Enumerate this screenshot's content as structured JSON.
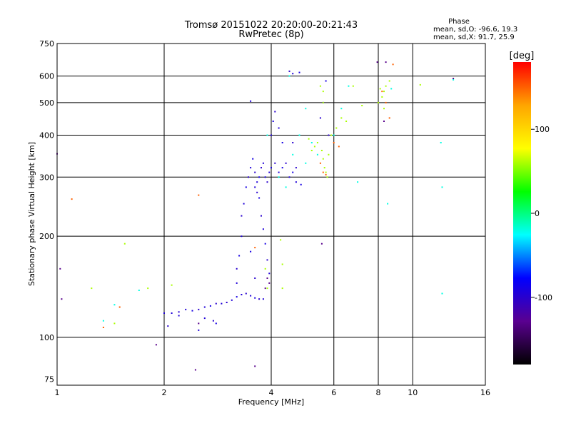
{
  "chart_data": {
    "type": "scatter",
    "title": "Tromsø 20151022 20:20:00-20:21:43",
    "subtitle": "RwPretec (8p)",
    "xlabel": "Frequency [MHz]",
    "ylabel": "Stationary phase Virtual Height [km]",
    "xscale": "log",
    "yscale": "log",
    "xlim": [
      1,
      16
    ],
    "ylim": [
      72,
      750
    ],
    "xticks": [
      "1",
      "2",
      "4",
      "6",
      "8",
      "10",
      "16"
    ],
    "xtick_values": [
      1,
      2,
      4,
      6,
      8,
      10,
      16
    ],
    "yticks": [
      "75",
      "100",
      "200",
      "300",
      "400",
      "500",
      "600",
      "750"
    ],
    "ytick_values": [
      75,
      100,
      200,
      300,
      400,
      500,
      600,
      750
    ],
    "grid": true,
    "stats": {
      "heading": "Phase",
      "line_o": "mean, sd,O: -96.6, 19.3",
      "line_x": "mean, sd,X:  91.7, 25.9"
    },
    "colorbar": {
      "label": "[deg]",
      "range": [
        -180,
        180
      ],
      "ticks": [
        "100",
        "0",
        "-100"
      ],
      "tick_values": [
        100,
        0,
        -100
      ],
      "colors": [
        "#000000",
        "#5a0090",
        "#0000ff",
        "#00ffff",
        "#00ff00",
        "#ffff00",
        "#ffa500",
        "#ff0000"
      ]
    },
    "series": [
      {
        "points": [
          [
            2.0,
            118,
            -95
          ],
          [
            2.1,
            118,
            -95
          ],
          [
            2.2,
            119,
            -100
          ],
          [
            2.3,
            121,
            -95
          ],
          [
            2.4,
            120,
            -90
          ],
          [
            2.5,
            121,
            -100
          ],
          [
            2.6,
            123,
            -95
          ],
          [
            2.7,
            124,
            -90
          ],
          [
            2.8,
            126,
            -100
          ],
          [
            2.9,
            126,
            -95
          ],
          [
            3.0,
            127,
            -100
          ],
          [
            3.1,
            129,
            -95
          ],
          [
            3.2,
            132,
            -90
          ],
          [
            3.3,
            134,
            -95
          ],
          [
            3.4,
            135,
            -100
          ],
          [
            3.5,
            133,
            -95
          ],
          [
            3.6,
            131,
            -90
          ],
          [
            3.7,
            130,
            -100
          ],
          [
            3.8,
            130,
            -95
          ],
          [
            3.2,
            145,
            -95
          ],
          [
            3.2,
            160,
            -100
          ],
          [
            3.25,
            175,
            -90
          ],
          [
            3.3,
            200,
            -95
          ],
          [
            3.3,
            230,
            -100
          ],
          [
            3.35,
            250,
            -95
          ],
          [
            3.4,
            280,
            -90
          ],
          [
            3.45,
            300,
            -100
          ],
          [
            3.5,
            320,
            -95
          ],
          [
            3.55,
            340,
            -90
          ],
          [
            3.6,
            310,
            -100
          ],
          [
            3.65,
            290,
            -95
          ],
          [
            3.7,
            300,
            -90
          ],
          [
            3.75,
            320,
            -100
          ],
          [
            3.8,
            330,
            -95
          ],
          [
            3.85,
            300,
            -90
          ],
          [
            3.9,
            290,
            -100
          ],
          [
            3.95,
            310,
            -95
          ],
          [
            4.0,
            320,
            -90
          ],
          [
            4.1,
            330,
            -100
          ],
          [
            4.2,
            310,
            -95
          ],
          [
            4.3,
            320,
            -90
          ],
          [
            4.4,
            330,
            -100
          ],
          [
            4.5,
            300,
            -95
          ],
          [
            4.6,
            310,
            -90
          ],
          [
            4.7,
            320,
            -100
          ],
          [
            4.0,
            400,
            -95
          ],
          [
            4.05,
            440,
            -90
          ],
          [
            4.1,
            470,
            -100
          ],
          [
            4.2,
            420,
            -95
          ],
          [
            4.3,
            380,
            -90
          ],
          [
            4.5,
            620,
            -100
          ],
          [
            4.6,
            610,
            -95
          ],
          [
            4.8,
            615,
            -90
          ],
          [
            3.5,
            505,
            -95
          ],
          [
            5.5,
            450,
            -100
          ],
          [
            5.6,
            500,
            -95
          ],
          [
            5.7,
            580,
            -90
          ],
          [
            5.8,
            400,
            -100
          ],
          [
            3.6,
            280,
            -95
          ],
          [
            3.65,
            270,
            -100
          ],
          [
            3.7,
            260,
            -90
          ],
          [
            3.75,
            230,
            -100
          ],
          [
            3.8,
            210,
            -95
          ],
          [
            3.85,
            190,
            -90
          ],
          [
            3.9,
            170,
            -100
          ],
          [
            3.95,
            155,
            -95
          ],
          [
            3.5,
            180,
            -90
          ],
          [
            3.6,
            150,
            -100
          ],
          [
            2.6,
            114,
            -95
          ],
          [
            2.75,
            112,
            -100
          ],
          [
            2.8,
            110,
            -90
          ],
          [
            2.2,
            116,
            -95
          ],
          [
            2.05,
            108,
            -100
          ],
          [
            2.5,
            105,
            -95
          ],
          [
            4.6,
            380,
            -100
          ],
          [
            4.7,
            290,
            -95
          ],
          [
            4.85,
            285,
            -90
          ],
          [
            4.2,
            300,
            -20
          ],
          [
            4.4,
            280,
            -20
          ],
          [
            4.6,
            350,
            -20
          ],
          [
            4.8,
            400,
            -20
          ],
          [
            5.0,
            330,
            -20
          ],
          [
            5.2,
            380,
            -20
          ],
          [
            5.4,
            350,
            -20
          ],
          [
            3.9,
            400,
            -20
          ],
          [
            5.0,
            480,
            -20
          ],
          [
            6.0,
            400,
            -20
          ],
          [
            6.3,
            480,
            -20
          ],
          [
            6.6,
            560,
            -20
          ],
          [
            7.0,
            290,
            -20
          ],
          [
            8.7,
            550,
            -20
          ],
          [
            13.0,
            585,
            -20
          ],
          [
            12.0,
            380,
            -20
          ],
          [
            12.1,
            280,
            -20
          ],
          [
            12.1,
            135,
            -20
          ],
          [
            8.5,
            250,
            -20
          ],
          [
            1.7,
            138,
            -20
          ],
          [
            1.45,
            125,
            -20
          ],
          [
            1.35,
            112,
            -20
          ],
          [
            4.5,
            600,
            -20
          ],
          [
            5.6,
            340,
            60
          ],
          [
            5.65,
            320,
            60
          ],
          [
            5.7,
            310,
            60
          ],
          [
            5.75,
            300,
            60
          ],
          [
            5.55,
            360,
            60
          ],
          [
            5.4,
            380,
            60
          ],
          [
            5.3,
            370,
            60
          ],
          [
            5.2,
            360,
            60
          ],
          [
            5.1,
            390,
            60
          ],
          [
            5.8,
            350,
            60
          ],
          [
            5.9,
            400,
            60
          ],
          [
            6.1,
            420,
            60
          ],
          [
            6.3,
            450,
            60
          ],
          [
            6.5,
            440,
            60
          ],
          [
            7.2,
            490,
            60
          ],
          [
            8.0,
            500,
            60
          ],
          [
            8.2,
            520,
            60
          ],
          [
            8.3,
            540,
            60
          ],
          [
            8.4,
            560,
            60
          ],
          [
            8.6,
            580,
            60
          ],
          [
            8.1,
            550,
            60
          ],
          [
            8.3,
            480,
            60
          ],
          [
            10.5,
            565,
            60
          ],
          [
            5.5,
            560,
            60
          ],
          [
            5.6,
            540,
            60
          ],
          [
            1.55,
            190,
            60
          ],
          [
            1.8,
            140,
            60
          ],
          [
            2.1,
            143,
            60
          ],
          [
            4.3,
            140,
            60
          ],
          [
            4.3,
            165,
            60
          ],
          [
            1.25,
            140,
            60
          ],
          [
            1.45,
            110,
            60
          ],
          [
            4.25,
            195,
            60
          ],
          [
            3.85,
            160,
            60
          ],
          [
            3.9,
            140,
            60
          ],
          [
            6.8,
            560,
            60
          ],
          [
            5.6,
            500,
            60
          ],
          [
            5.6,
            310,
            150
          ],
          [
            5.7,
            305,
            150
          ],
          [
            5.5,
            330,
            150
          ],
          [
            6.0,
            380,
            150
          ],
          [
            6.2,
            370,
            150
          ],
          [
            8.2,
            540,
            150
          ],
          [
            8.4,
            500,
            150
          ],
          [
            8.6,
            450,
            150
          ],
          [
            8.8,
            650,
            150
          ],
          [
            1.1,
            258,
            150
          ],
          [
            1.35,
            107,
            150
          ],
          [
            1.5,
            123,
            150
          ],
          [
            2.5,
            265,
            150
          ],
          [
            3.6,
            185,
            150
          ],
          [
            1.0,
            352,
            -130
          ],
          [
            1.02,
            160,
            -130
          ],
          [
            1.03,
            130,
            -130
          ],
          [
            2.5,
            110,
            -130
          ],
          [
            2.45,
            80,
            -130
          ],
          [
            3.6,
            82,
            -130
          ],
          [
            1.9,
            95,
            -130
          ],
          [
            7.95,
            660,
            -130
          ],
          [
            8.4,
            660,
            -130
          ],
          [
            8.3,
            440,
            -130
          ],
          [
            5.55,
            190,
            -130
          ],
          [
            13.0,
            590,
            -130
          ],
          [
            3.85,
            140,
            -130
          ],
          [
            3.9,
            150,
            -130
          ],
          [
            3.95,
            145,
            -130
          ]
        ]
      }
    ]
  }
}
